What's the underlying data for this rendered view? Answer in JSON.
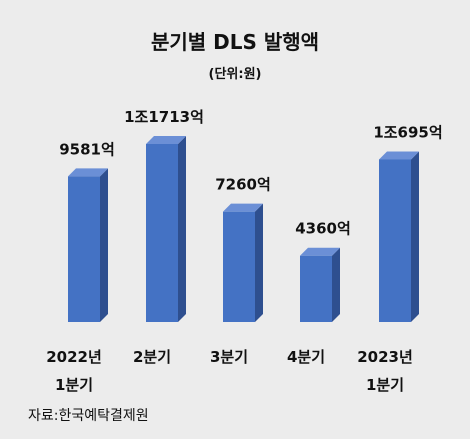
{
  "chart_data": {
    "type": "bar",
    "title": "분기별 DLS 발행액",
    "unit": "(단위:원)",
    "categories": [
      [
        "2022년",
        "1분기"
      ],
      [
        "2분기"
      ],
      [
        "3분기"
      ],
      [
        "4분기"
      ],
      [
        "2023년",
        "1분기"
      ]
    ],
    "values": [
      9581,
      11713,
      7260,
      4360,
      10695
    ],
    "value_labels": [
      "9581억",
      "1조1713억",
      "7260억",
      "4360억",
      "1조695억"
    ],
    "ylim": [
      0,
      12500
    ],
    "grid": false,
    "legend": "none",
    "colors": {
      "front": "#4472c4",
      "top": "#6b8fd6",
      "side": "#2e4f8f"
    }
  },
  "source": "자료:한국예탁결제원"
}
